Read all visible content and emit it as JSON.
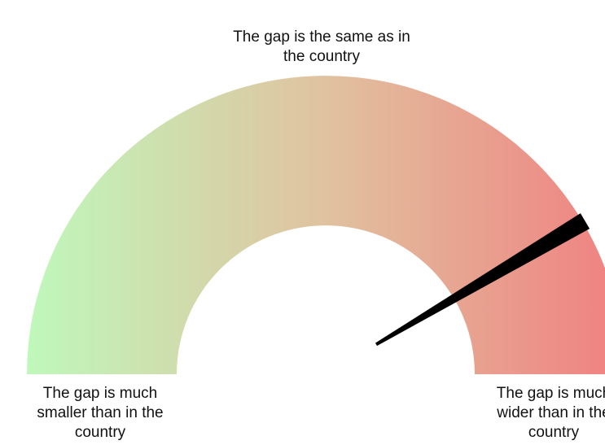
{
  "chart_data": {
    "type": "gauge",
    "labels": {
      "center": "The gap is the same as in the country",
      "min": "The gap is much smaller than in the country",
      "max": "The gap is much wider than in the country"
    },
    "value": 0.83,
    "range": [
      0,
      1
    ],
    "colors": [
      "#bff8bb",
      "#e0c29f",
      "#f08080"
    ],
    "needle_color": "#000000"
  }
}
